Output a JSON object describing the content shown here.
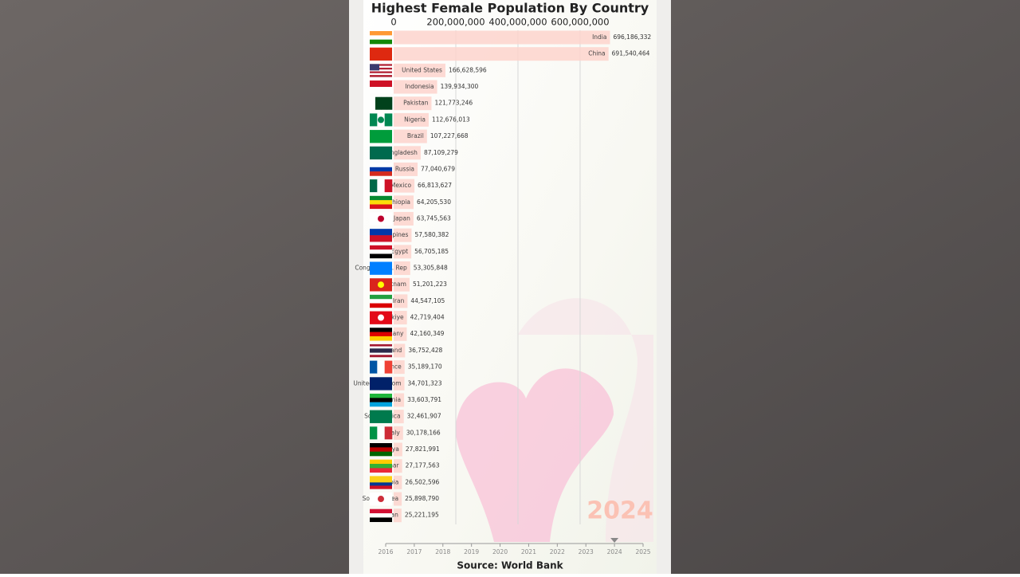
{
  "chart_data": {
    "type": "bar",
    "title": "Highest Female Population By Country",
    "categories": [
      "India",
      "China",
      "United States",
      "Indonesia",
      "Pakistan",
      "Nigeria",
      "Brazil",
      "Bangladesh",
      "Russia",
      "Mexico",
      "Ethiopia",
      "Japan",
      "Philippines",
      "Egypt",
      "Congo, Dem. Rep",
      "Vietnam",
      "Iran",
      "Turkiye",
      "Germany",
      "Thailand",
      "France",
      "United Kingdom",
      "Tanzania",
      "South Africa",
      "Italy",
      "Kenya",
      "Myanmar",
      "Colombia",
      "South Korea",
      "Sudan"
    ],
    "values": [
      696186332,
      691540464,
      166628596,
      139934300,
      121773246,
      112676013,
      107227668,
      87109279,
      77040679,
      66813627,
      64205530,
      63745563,
      57580382,
      56705185,
      53305848,
      51201223,
      44547105,
      42719404,
      42160349,
      36752428,
      35189170,
      34701323,
      33603791,
      32461907,
      30178166,
      27821991,
      27177563,
      26502596,
      25898790,
      25221195
    ],
    "value_labels": [
      "696,186,332",
      "691,540,464",
      "166,628,596",
      "139,934,300",
      "121,773,246",
      "112,676,013",
      "107,227,668",
      "87,109,279",
      "77,040,679",
      "66,813,627",
      "64,205,530",
      "63,745,563",
      "57,580,382",
      "56,705,185",
      "53,305,848",
      "51,201,223",
      "44,547,105",
      "42,719,404",
      "42,160,349",
      "36,752,428",
      "35,189,170",
      "34,701,323",
      "33,603,791",
      "32,461,907",
      "30,178,166",
      "27,821,991",
      "27,177,563",
      "26,502,596",
      "25,898,790",
      "25,221,195"
    ],
    "color": "#fdd3cd",
    "xlim": [
      0,
      836000000
    ],
    "xticks": [
      0,
      {
        "value": 200000000,
        "label": "200,000,000"
      },
      {
        "value": 400000000,
        "label": "400,000,000"
      },
      {
        "value": 600000000,
        "label": "600,000,000"
      }
    ],
    "grid": true,
    "year": 2024,
    "timeline_ticks": [
      2016,
      2017,
      2018,
      2019,
      2020,
      2021,
      2022,
      2023,
      2024,
      2025
    ],
    "source": "Source: World Bank"
  }
}
